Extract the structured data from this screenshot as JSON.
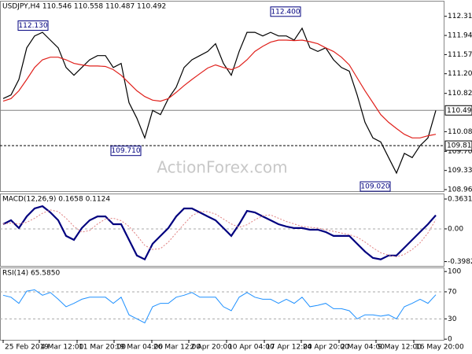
{
  "chart_data": [
    {
      "type": "line",
      "title": "USDJPY,H4 110.546 110.558 110.487 110.492",
      "watermark": "ActionForex.com",
      "xlim": [
        -0.4,
        56.1
      ],
      "ylim": [
        108.93,
        112.61
      ],
      "yticks": [
        {
          "value": 112.31,
          "label": "112.310"
        },
        {
          "value": 111.94,
          "label": "111.940"
        },
        {
          "value": 111.57,
          "label": "111.570"
        },
        {
          "value": 111.2,
          "label": "111.200"
        },
        {
          "value": 110.82,
          "label": "110.820"
        },
        {
          "value": 110.08,
          "label": "110.080"
        },
        {
          "value": 109.7,
          "label": "109.700"
        },
        {
          "value": 109.33,
          "label": "109.330"
        },
        {
          "value": 108.96,
          "label": "108.960"
        }
      ],
      "hlines": [
        {
          "value": 110.492,
          "label": "110.492",
          "style": "solid",
          "color": "#808080"
        },
        {
          "value": 109.81,
          "label": "109.810",
          "style": "dashed",
          "color": "#000000"
        }
      ],
      "annotations": [
        {
          "x": 3.8,
          "value": 112.13,
          "label": "112.130"
        },
        {
          "x": 35.9,
          "value": 112.4,
          "label": "112.400"
        },
        {
          "x": 15.6,
          "value": 109.71,
          "label": "109.710"
        },
        {
          "x": 47.3,
          "value": 109.02,
          "label": "109.020"
        }
      ],
      "series": [
        {
          "color": "#000000",
          "width": 1.2,
          "dash": false,
          "values": [
            110.72,
            110.79,
            111.09,
            111.7,
            111.93,
            112.0,
            111.85,
            111.7,
            111.32,
            111.17,
            111.32,
            111.47,
            111.55,
            111.55,
            111.32,
            111.4,
            110.64,
            110.34,
            109.96,
            110.49,
            110.41,
            110.72,
            110.94,
            111.32,
            111.47,
            111.55,
            111.63,
            111.78,
            111.4,
            111.17,
            111.63,
            112.0,
            112.0,
            111.93,
            112.0,
            111.93,
            111.93,
            111.85,
            112.08,
            111.7,
            111.63,
            111.7,
            111.47,
            111.32,
            111.25,
            110.79,
            110.26,
            109.96,
            109.88,
            109.58,
            109.28,
            109.66,
            109.58,
            109.81,
            109.96,
            110.49
          ]
        },
        {
          "color": "#e0201b",
          "width": 1.2,
          "dash": false,
          "values": [
            110.67,
            110.72,
            110.87,
            111.09,
            111.32,
            111.47,
            111.52,
            111.52,
            111.47,
            111.4,
            111.37,
            111.35,
            111.35,
            111.34,
            111.28,
            111.17,
            111.02,
            110.87,
            110.76,
            110.69,
            110.67,
            110.72,
            110.84,
            110.97,
            111.09,
            111.2,
            111.31,
            111.37,
            111.32,
            111.28,
            111.34,
            111.47,
            111.63,
            111.73,
            111.81,
            111.85,
            111.85,
            111.84,
            111.85,
            111.82,
            111.78,
            111.7,
            111.63,
            111.52,
            111.37,
            111.12,
            110.87,
            110.64,
            110.41,
            110.26,
            110.14,
            110.03,
            109.96,
            109.96,
            110.0,
            110.03
          ]
        }
      ]
    },
    {
      "type": "line",
      "title": "MACD(12,26,9) 0.1658 0.1124",
      "xlim": [
        -0.4,
        56.1
      ],
      "ylim": [
        -0.45,
        0.43
      ],
      "yticks": [
        0.3631,
        {
          "value": 0,
          "label": "0.00"
        },
        -0.3982
      ],
      "levels": [
        0
      ],
      "series": [
        {
          "color": "#00007f",
          "width": 2.2,
          "dash": false,
          "values": [
            0.057,
            0.105,
            0.01,
            0.152,
            0.248,
            0.276,
            0.2,
            0.105,
            -0.086,
            -0.133,
            0.01,
            0.105,
            0.152,
            0.152,
            0.057,
            0.057,
            -0.133,
            -0.324,
            -0.371,
            -0.181,
            -0.086,
            0.01,
            0.152,
            0.248,
            0.248,
            0.2,
            0.152,
            0.105,
            0.01,
            -0.086,
            0.057,
            0.219,
            0.2,
            0.152,
            0.105,
            0.057,
            0.029,
            0.01,
            0.01,
            -0.01,
            -0.01,
            -0.038,
            -0.086,
            -0.086,
            -0.086,
            -0.181,
            -0.276,
            -0.352,
            -0.371,
            -0.324,
            -0.324,
            -0.229,
            -0.133,
            -0.038,
            0.057,
            0.1658
          ]
        },
        {
          "color": "#e08080",
          "width": 1,
          "dash": true,
          "values": [
            0.06,
            0.07,
            0.06,
            0.08,
            0.13,
            0.19,
            0.23,
            0.21,
            0.13,
            0.03,
            -0.04,
            -0.02,
            0.06,
            0.12,
            0.13,
            0.1,
            0.03,
            -0.08,
            -0.2,
            -0.25,
            -0.24,
            -0.16,
            -0.05,
            0.06,
            0.16,
            0.21,
            0.21,
            0.18,
            0.12,
            0.06,
            0.02,
            0.05,
            0.11,
            0.16,
            0.17,
            0.13,
            0.09,
            0.06,
            0.03,
            0.02,
            0.01,
            -0.01,
            -0.03,
            -0.05,
            -0.07,
            -0.1,
            -0.16,
            -0.23,
            -0.29,
            -0.32,
            -0.34,
            -0.31,
            -0.25,
            -0.17,
            -0.05,
            0.1124
          ]
        }
      ]
    },
    {
      "type": "line",
      "title": "RSI(14) 65.5850",
      "xlim": [
        -0.4,
        56.1
      ],
      "ylim": [
        -1,
        106
      ],
      "yticks": [
        100,
        70,
        30,
        0
      ],
      "levels": [
        70,
        30
      ],
      "xticks": [
        {
          "value": 0,
          "label": "25 Feb 2019"
        },
        {
          "value": 4.6,
          "label": "4 Mar 12:00"
        },
        {
          "value": 9.4,
          "label": "11 Mar 20:00"
        },
        {
          "value": 14.1,
          "label": "19 Mar 04:00"
        },
        {
          "value": 18.9,
          "label": "26 Mar 12:00"
        },
        {
          "value": 23.6,
          "label": "2 Apr 20:00"
        },
        {
          "value": 28.4,
          "label": "10 Apr 04:00"
        },
        {
          "value": 33.2,
          "label": "17 Apr 12:00"
        },
        {
          "value": 37.9,
          "label": "24 Apr 20:00"
        },
        {
          "value": 42.7,
          "label": "2 May 04:00"
        },
        {
          "value": 47.4,
          "label": "9 May 12:00"
        },
        {
          "value": 52.2,
          "label": "16 May 20:00"
        }
      ],
      "series": [
        {
          "color": "#1e90ff",
          "width": 1,
          "dash": false,
          "values": [
            65,
            62,
            53,
            71,
            73,
            65,
            69,
            59,
            48,
            53,
            59,
            62,
            62,
            62,
            53,
            62,
            36,
            30,
            24,
            48,
            53,
            53,
            62,
            65,
            69,
            62,
            62,
            62,
            48,
            42,
            62,
            69,
            62,
            59,
            59,
            53,
            59,
            53,
            62,
            48,
            50,
            53,
            45,
            45,
            42,
            30,
            36,
            36,
            34,
            36,
            30,
            48,
            53,
            59,
            53,
            65.585
          ]
        }
      ]
    }
  ]
}
